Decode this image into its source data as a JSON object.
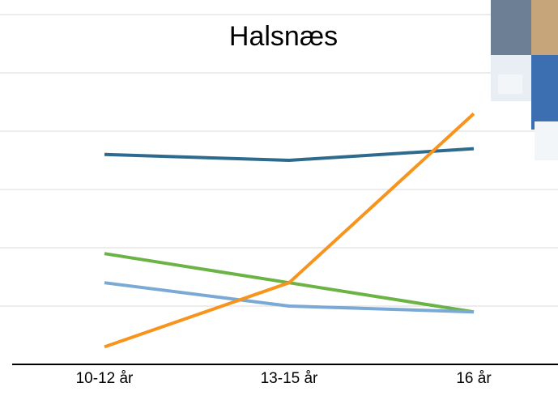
{
  "chart_data": {
    "type": "line",
    "title": "Halsnæs",
    "categories": [
      "10-12 år",
      "13-15 år",
      "16 år"
    ],
    "series": [
      {
        "color": "#2e6a8e",
        "values": [
          3.6,
          3.5,
          3.7
        ]
      },
      {
        "color": "#6ab344",
        "values": [
          1.9,
          1.4,
          0.9
        ]
      },
      {
        "color": "#7aa9d6",
        "values": [
          1.4,
          1.0,
          0.9
        ]
      },
      {
        "color": "#f7941d",
        "values": [
          0.3,
          1.4,
          4.3
        ]
      }
    ],
    "ylim": [
      0,
      6
    ],
    "yticks": [
      0,
      1,
      2,
      3,
      4,
      5,
      6
    ],
    "grid": true
  }
}
